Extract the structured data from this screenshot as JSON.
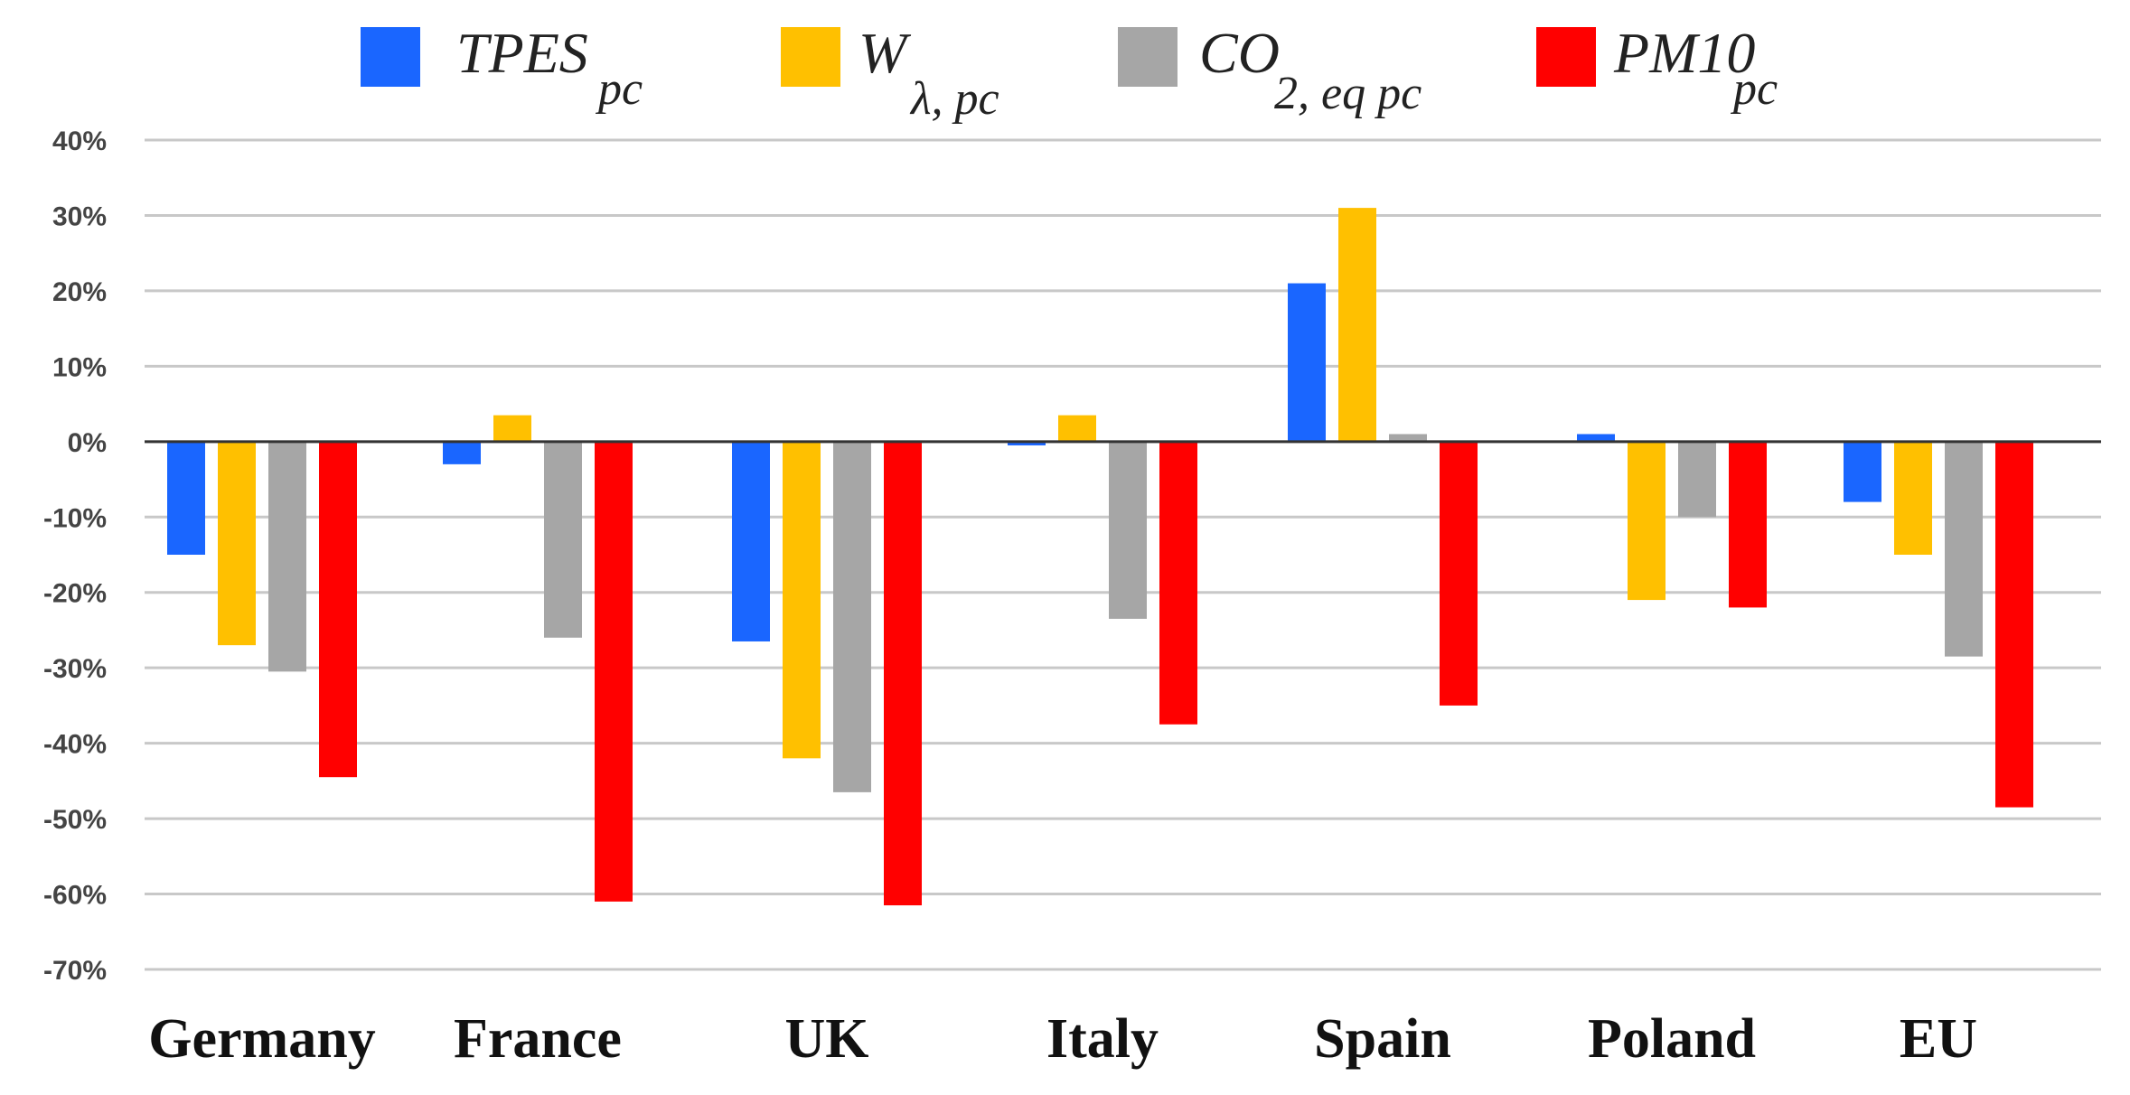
{
  "chart_data": {
    "type": "bar",
    "title": "",
    "xlabel": "",
    "ylabel": "",
    "ylim": [
      -70,
      40
    ],
    "yticks": [
      40,
      30,
      20,
      10,
      0,
      -10,
      -20,
      -30,
      -40,
      -50,
      -60,
      -70
    ],
    "ytick_labels": [
      "40%",
      "30%",
      "20%",
      "10%",
      "0%",
      "-10%",
      "-20%",
      "-30%",
      "-40%",
      "-50%",
      "-60%",
      "-70%"
    ],
    "grid": true,
    "legend_position": "top",
    "categories": [
      "Germany",
      "France",
      "UK",
      "Italy",
      "Spain",
      "Poland",
      "EU"
    ],
    "series": [
      {
        "name": "TPES",
        "subscript": "pc",
        "color": "#1a66ff",
        "values": [
          -15,
          -3,
          -26.5,
          -0.5,
          21,
          1,
          -8
        ]
      },
      {
        "name": "W",
        "subscript": "λ, pc",
        "color": "#ffc000",
        "values": [
          -27,
          3.5,
          -42,
          3.5,
          31,
          -21,
          -15
        ]
      },
      {
        "name": "CO",
        "subscript": "2, eq pc",
        "color": "#a6a6a6",
        "values": [
          -30.5,
          -26,
          -46.5,
          -23.5,
          1,
          -10,
          -28.5
        ]
      },
      {
        "name": "PM10",
        "subscript": "pc",
        "color": "#ff0000",
        "values": [
          -44.5,
          -61,
          -61.5,
          -37.5,
          -35,
          -22,
          -48.5
        ]
      }
    ]
  }
}
